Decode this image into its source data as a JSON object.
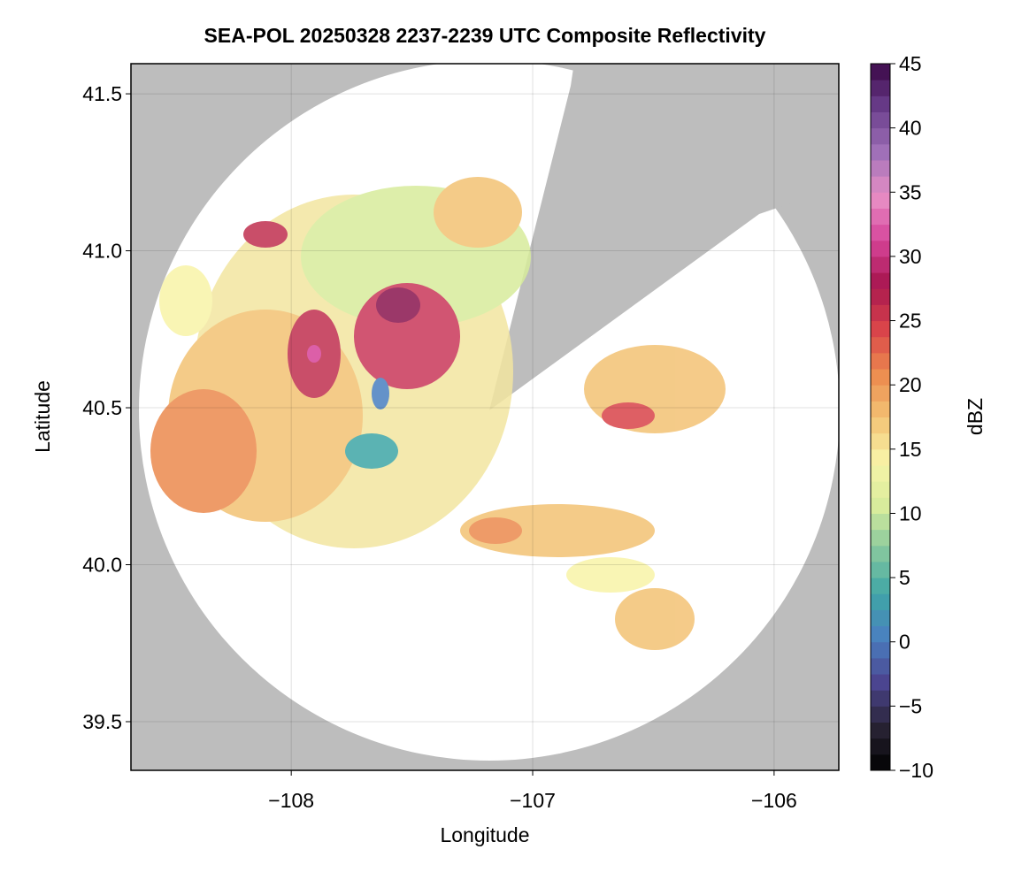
{
  "chart_data": {
    "type": "radar-composite",
    "title": "SEA-POL 20250328 2237-2239 UTC Composite Reflectivity",
    "x_label": "Longitude",
    "y_label": "Latitude",
    "xlim": [
      -108.664,
      -105.732
    ],
    "xticks": [
      {
        "value": -108,
        "label": "−108"
      },
      {
        "value": -107,
        "label": "−107"
      },
      {
        "value": -106,
        "label": "−106"
      }
    ],
    "ylim": [
      39.345,
      41.596
    ],
    "yticks": [
      39.5,
      {
        "value": 40,
        "label": "40.0"
      },
      40.5,
      {
        "value": 41,
        "label": "41.0"
      },
      41.5
    ],
    "grid": true,
    "colorbar": {
      "label": "dBZ",
      "lim": [
        -10,
        45
      ],
      "ticks": [
        {
          "value": -10,
          "label": "−10"
        },
        {
          "value": -5,
          "label": "−5"
        },
        0,
        5,
        10,
        15,
        20,
        25,
        30,
        35,
        40,
        45
      ],
      "colors": [
        "#000000",
        "#2a2436",
        "#4b4590",
        "#4a7fc0",
        "#3fa6a6",
        "#86c89e",
        "#d8ec9c",
        "#f8f4a8",
        "#f3c274",
        "#ec8a4e",
        "#d9444a",
        "#a8164f",
        "#d6449a",
        "#e890c6",
        "#a070b8",
        "#6a3e8c",
        "#3c0848"
      ]
    }
  }
}
